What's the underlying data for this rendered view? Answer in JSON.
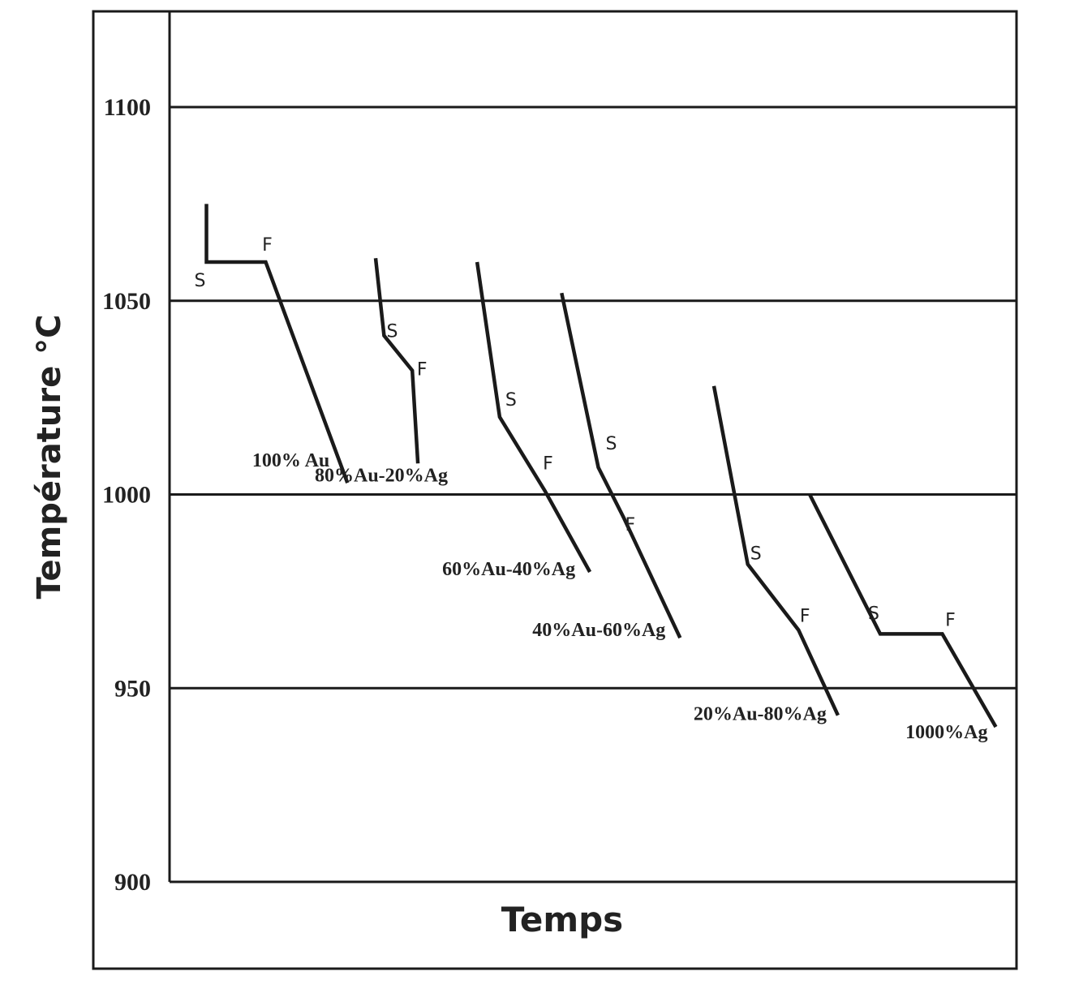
{
  "chart_data": {
    "type": "line",
    "title": "",
    "xlabel": "Temps",
    "ylabel": "Température °C",
    "ylim": [
      900,
      1125
    ],
    "yticks": [
      1100,
      1050,
      1000,
      950,
      900
    ],
    "grid": "horizontal",
    "legend": "none",
    "series": [
      {
        "name": "100% Au",
        "points": [
          [
            1,
            1075
          ],
          [
            1,
            1060
          ],
          [
            2.05,
            1060
          ],
          [
            3.5,
            1003
          ]
        ],
        "S": [
          1,
          1060
        ],
        "F": [
          2.05,
          1060
        ]
      },
      {
        "name": "80%Au-20%Ag",
        "points": [
          [
            4,
            1061
          ],
          [
            4.15,
            1041
          ],
          [
            4.65,
            1032
          ],
          [
            4.75,
            1008
          ]
        ],
        "S": [
          4.15,
          1041
        ],
        "F": [
          4.65,
          1032
        ]
      },
      {
        "name": "60%Au-40%Ag",
        "points": [
          [
            5.8,
            1060
          ],
          [
            6.2,
            1020
          ],
          [
            7,
            1001
          ],
          [
            7.8,
            980
          ]
        ],
        "S": [
          6.2,
          1020
        ],
        "F": [
          7,
          1001
        ]
      },
      {
        "name": "40%Au-60%Ag",
        "points": [
          [
            7.3,
            1052
          ],
          [
            7.95,
            1007
          ],
          [
            8.4,
            994
          ],
          [
            9.4,
            963
          ]
        ],
        "S": [
          7.95,
          1007
        ],
        "F": [
          8.4,
          994
        ]
      },
      {
        "name": "20%Au-80%Ag",
        "points": [
          [
            10,
            1028
          ],
          [
            10.6,
            982
          ],
          [
            11.5,
            965
          ],
          [
            12.2,
            943
          ]
        ],
        "S": [
          10.6,
          982
        ],
        "F": [
          11.5,
          965
        ]
      },
      {
        "name": "1000%Ag",
        "points": [
          [
            11.7,
            1000
          ],
          [
            12.95,
            964
          ],
          [
            14.05,
            964
          ],
          [
            15,
            940
          ]
        ],
        "S": [
          12.95,
          964
        ],
        "F": [
          14.05,
          964
        ]
      }
    ],
    "point_labels": {
      "s": "S",
      "f": "F"
    }
  }
}
